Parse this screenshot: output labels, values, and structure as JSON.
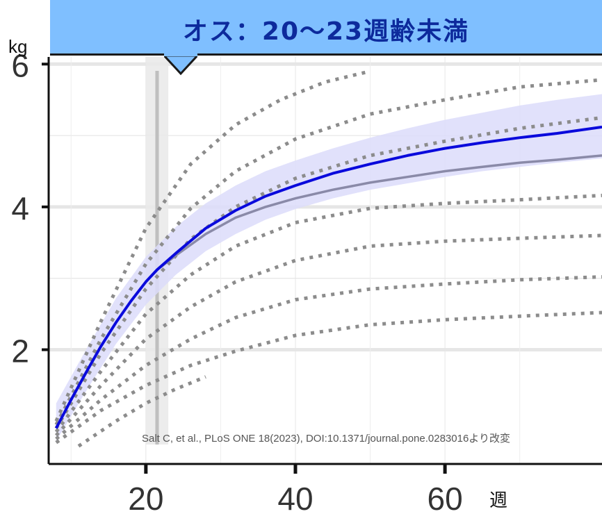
{
  "banner": {
    "title": "オス：20～23週齢未満"
  },
  "units": {
    "y": "kg",
    "x": "週"
  },
  "credit": "Salt C, et al., PLoS ONE 18(2023), DOI:10.1371/journal.pone.0283016より改変",
  "colors": {
    "banner_bg": "#7fbfff",
    "banner_text": "#0d2a9c",
    "main_line": "#0a0adc",
    "band": "#dcdcfa",
    "median_line": "#8a8aa8",
    "percentile_dots": "#8c8c8c",
    "highlight": "#bfbfbf"
  },
  "chart_data": {
    "type": "line",
    "x_ticks": [
      20,
      40,
      60
    ],
    "y_ticks": [
      2,
      4,
      6
    ],
    "xlim": [
      7,
      81
    ],
    "ylim": [
      0.4,
      6.1
    ],
    "grid": true,
    "highlight_x": 21.5,
    "highlight_band": [
      20,
      23
    ],
    "main_curve": {
      "x": [
        8,
        10,
        12,
        14,
        16,
        18,
        20,
        21.5,
        24,
        28,
        32,
        36,
        40,
        45,
        50,
        55,
        60,
        65,
        70,
        75,
        81
      ],
      "y": [
        0.9,
        1.3,
        1.68,
        2.05,
        2.38,
        2.68,
        2.95,
        3.12,
        3.35,
        3.7,
        3.95,
        4.15,
        4.3,
        4.47,
        4.6,
        4.72,
        4.82,
        4.9,
        4.97,
        5.03,
        5.12
      ]
    },
    "band_upper": {
      "x": [
        8,
        12,
        16,
        20,
        24,
        28,
        32,
        36,
        40,
        45,
        50,
        55,
        60,
        65,
        70,
        75,
        81
      ],
      "y": [
        1.25,
        2.0,
        2.72,
        3.3,
        3.72,
        4.05,
        4.3,
        4.5,
        4.65,
        4.82,
        4.97,
        5.1,
        5.22,
        5.32,
        5.42,
        5.5,
        5.58
      ]
    },
    "band_lower": {
      "x": [
        8,
        12,
        16,
        20,
        24,
        28,
        32,
        36,
        40,
        45,
        50,
        55,
        60,
        65,
        70,
        75,
        81
      ],
      "y": [
        0.72,
        1.42,
        2.08,
        2.63,
        3.05,
        3.38,
        3.62,
        3.82,
        3.97,
        4.12,
        4.24,
        4.33,
        4.42,
        4.5,
        4.56,
        4.62,
        4.68
      ]
    },
    "median_curve": {
      "x": [
        21.5,
        24,
        28,
        32,
        36,
        40,
        45,
        50,
        55,
        60,
        65,
        70,
        75,
        81
      ],
      "y": [
        3.12,
        3.32,
        3.62,
        3.85,
        4.0,
        4.12,
        4.24,
        4.34,
        4.42,
        4.5,
        4.56,
        4.62,
        4.66,
        4.72
      ]
    },
    "percentile_curves": [
      {
        "x": [
          8,
          14,
          20,
          26,
          32,
          38,
          44,
          50
        ],
        "y": [
          1.0,
          2.4,
          3.7,
          4.6,
          5.15,
          5.5,
          5.75,
          5.9
        ]
      },
      {
        "x": [
          8,
          14,
          20,
          26,
          32,
          40,
          50,
          60,
          70,
          81
        ],
        "y": [
          0.95,
          2.15,
          3.2,
          3.98,
          4.5,
          4.95,
          5.3,
          5.5,
          5.68,
          5.78
        ]
      },
      {
        "x": [
          8,
          14,
          20,
          26,
          32,
          40,
          50,
          60,
          70,
          81
        ],
        "y": [
          0.9,
          1.95,
          2.85,
          3.55,
          4.0,
          4.4,
          4.72,
          4.92,
          5.1,
          5.25
        ]
      },
      {
        "x": [
          8,
          14,
          20,
          26,
          32,
          40,
          50,
          60,
          70,
          81
        ],
        "y": [
          0.85,
          1.7,
          2.5,
          3.05,
          3.45,
          3.78,
          3.98,
          4.05,
          4.1,
          4.16
        ]
      },
      {
        "x": [
          8,
          14,
          20,
          26,
          32,
          40,
          50,
          60,
          70,
          81
        ],
        "y": [
          0.8,
          1.5,
          2.15,
          2.6,
          2.95,
          3.25,
          3.45,
          3.52,
          3.56,
          3.6
        ]
      },
      {
        "x": [
          8,
          14,
          20,
          26,
          32,
          40,
          50,
          60,
          70,
          81
        ],
        "y": [
          0.75,
          1.3,
          1.78,
          2.15,
          2.45,
          2.7,
          2.85,
          2.92,
          2.98,
          3.02
        ]
      },
      {
        "x": [
          8,
          14,
          20,
          26,
          32,
          40,
          50,
          60,
          70,
          81
        ],
        "y": [
          0.7,
          1.15,
          1.5,
          1.78,
          1.98,
          2.2,
          2.35,
          2.42,
          2.47,
          2.52
        ]
      },
      {
        "x": [
          11,
          16,
          20,
          24,
          28
        ],
        "y": [
          0.65,
          1.0,
          1.25,
          1.45,
          1.62
        ]
      }
    ]
  }
}
